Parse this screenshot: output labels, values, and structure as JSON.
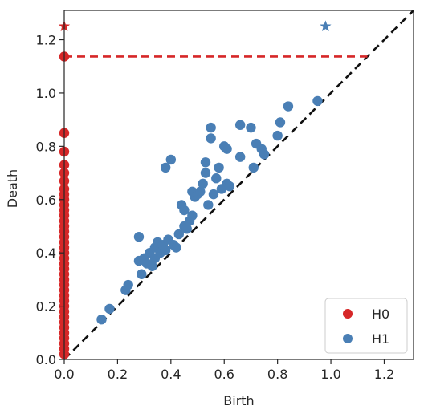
{
  "chart_data": {
    "type": "scatter",
    "title": "",
    "xlabel": "Birth",
    "ylabel": "Death",
    "xlim": [
      0,
      1.31
    ],
    "ylim": [
      0,
      1.31
    ],
    "xticks": [
      "0.0",
      "0.2",
      "0.4",
      "0.6",
      "0.8",
      "1.0",
      "1.2"
    ],
    "yticks": [
      "0.0",
      "0.2",
      "0.4",
      "0.6",
      "0.8",
      "1.0",
      "1.2"
    ],
    "grid": false,
    "legend_position": "bottom-right",
    "diagonal": true,
    "infinity_line": {
      "y": 1.137,
      "x_end": 1.137,
      "color": "#d62728"
    },
    "series": [
      {
        "name": "H0",
        "color": "#d62728",
        "points": [
          [
            0,
            1.137
          ],
          [
            0,
            0.85
          ],
          [
            0,
            0.78
          ],
          [
            0,
            0.73
          ],
          [
            0,
            0.7
          ],
          [
            0,
            0.67
          ],
          [
            0,
            0.64
          ],
          [
            0,
            0.62
          ],
          [
            0,
            0.6
          ],
          [
            0,
            0.58
          ],
          [
            0,
            0.56
          ],
          [
            0,
            0.54
          ],
          [
            0,
            0.52
          ],
          [
            0,
            0.5
          ],
          [
            0,
            0.48
          ],
          [
            0,
            0.46
          ],
          [
            0,
            0.44
          ],
          [
            0,
            0.42
          ],
          [
            0,
            0.4
          ],
          [
            0,
            0.38
          ],
          [
            0,
            0.36
          ],
          [
            0,
            0.34
          ],
          [
            0,
            0.32
          ],
          [
            0,
            0.3
          ],
          [
            0,
            0.28
          ],
          [
            0,
            0.26
          ],
          [
            0,
            0.24
          ],
          [
            0,
            0.22
          ],
          [
            0,
            0.2
          ],
          [
            0,
            0.18
          ],
          [
            0,
            0.16
          ],
          [
            0,
            0.14
          ],
          [
            0,
            0.12
          ],
          [
            0,
            0.1
          ],
          [
            0,
            0.08
          ],
          [
            0,
            0.06
          ],
          [
            0,
            0.04
          ],
          [
            0,
            0.02
          ]
        ],
        "infinite_points": [
          [
            0,
            1.25
          ]
        ]
      },
      {
        "name": "H1",
        "color": "#4a7fb5",
        "points": [
          [
            0.14,
            0.15
          ],
          [
            0.17,
            0.19
          ],
          [
            0.23,
            0.26
          ],
          [
            0.24,
            0.28
          ],
          [
            0.28,
            0.46
          ],
          [
            0.28,
            0.37
          ],
          [
            0.29,
            0.32
          ],
          [
            0.3,
            0.38
          ],
          [
            0.31,
            0.36
          ],
          [
            0.32,
            0.4
          ],
          [
            0.33,
            0.35
          ],
          [
            0.34,
            0.42
          ],
          [
            0.34,
            0.38
          ],
          [
            0.35,
            0.44
          ],
          [
            0.36,
            0.4
          ],
          [
            0.37,
            0.43
          ],
          [
            0.38,
            0.41
          ],
          [
            0.38,
            0.72
          ],
          [
            0.39,
            0.45
          ],
          [
            0.4,
            0.75
          ],
          [
            0.41,
            0.43
          ],
          [
            0.42,
            0.42
          ],
          [
            0.43,
            0.47
          ],
          [
            0.44,
            0.58
          ],
          [
            0.45,
            0.56
          ],
          [
            0.45,
            0.5
          ],
          [
            0.46,
            0.49
          ],
          [
            0.47,
            0.52
          ],
          [
            0.48,
            0.63
          ],
          [
            0.48,
            0.54
          ],
          [
            0.49,
            0.61
          ],
          [
            0.5,
            0.62
          ],
          [
            0.51,
            0.63
          ],
          [
            0.52,
            0.66
          ],
          [
            0.53,
            0.7
          ],
          [
            0.53,
            0.74
          ],
          [
            0.54,
            0.58
          ],
          [
            0.55,
            0.87
          ],
          [
            0.55,
            0.83
          ],
          [
            0.56,
            0.62
          ],
          [
            0.57,
            0.68
          ],
          [
            0.58,
            0.72
          ],
          [
            0.59,
            0.64
          ],
          [
            0.6,
            0.8
          ],
          [
            0.61,
            0.66
          ],
          [
            0.61,
            0.79
          ],
          [
            0.62,
            0.65
          ],
          [
            0.66,
            0.88
          ],
          [
            0.66,
            0.76
          ],
          [
            0.7,
            0.87
          ],
          [
            0.71,
            0.72
          ],
          [
            0.72,
            0.81
          ],
          [
            0.74,
            0.79
          ],
          [
            0.75,
            0.77
          ],
          [
            0.8,
            0.84
          ],
          [
            0.81,
            0.89
          ],
          [
            0.84,
            0.95
          ],
          [
            0.95,
            0.97
          ]
        ],
        "infinite_points": [
          [
            0.98,
            1.25
          ]
        ]
      }
    ]
  }
}
